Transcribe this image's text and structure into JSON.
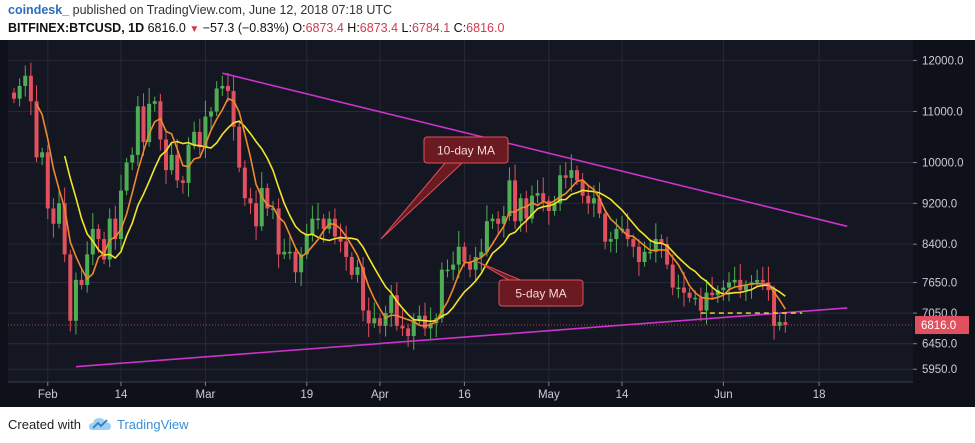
{
  "header": {
    "user": "coindesk_",
    "published_text": "published on TradingView.com, June 12, 2018 07:18 UTC",
    "symbol": "BITFINEX:BTCUSD, 1D",
    "last": "6816.0",
    "change": "−57.3 (−0.83%)",
    "o_label": "O:",
    "o_value": "6873.4",
    "h_label": "H:",
    "h_value": "6873.4",
    "l_label": "L:",
    "l_value": "6784.1",
    "c_label": "C:",
    "c_value": "6816.0"
  },
  "footer": {
    "created_with": "Created with",
    "brand": "TradingView"
  },
  "colors": {
    "background": "#141721",
    "up": "#4fae55",
    "down": "#e0505e",
    "ma10": "#f1e62a",
    "ma5": "#f0892e",
    "trendline": "#cc33cc",
    "price_tag": "#e0505e",
    "annotation": "#6b1a22"
  },
  "chart_data": {
    "type": "candlestick",
    "ylim": [
      5700,
      12400
    ],
    "y_ticks": [
      "12000.0",
      "11000.0",
      "10000.0",
      "9200.0",
      "8400.0",
      "7650.0",
      "7050.0",
      "6450.0",
      "5950.0"
    ],
    "y_tick_values": [
      12000,
      11000,
      10000,
      9200,
      8400,
      7650,
      7050,
      6450,
      5950
    ],
    "x_ticks": [
      "Feb",
      "14",
      "Mar",
      "19",
      "Apr",
      "16",
      "May",
      "14",
      "Jun",
      "18"
    ],
    "x_tick_dates": [
      "2018-02-01",
      "2018-02-14",
      "2018-03-01",
      "2018-03-19",
      "2018-04-01",
      "2018-04-16",
      "2018-05-01",
      "2018-05-14",
      "2018-06-01",
      "2018-06-18"
    ],
    "last_price_label": "6816.0",
    "last_price": 6816,
    "annotations": [
      "10-day MA",
      "5-day MA"
    ],
    "trendlines": [
      {
        "from": [
          "2018-03-04",
          11750
        ],
        "to": [
          "2018-06-23",
          8750
        ]
      },
      {
        "from": [
          "2018-02-06",
          6000
        ],
        "to": [
          "2018-06-23",
          7150
        ]
      }
    ],
    "support_level": 7050,
    "daily_close": [
      [
        "2018-01-26",
        11250
      ],
      [
        "2018-01-27",
        11500
      ],
      [
        "2018-01-28",
        11700
      ],
      [
        "2018-01-29",
        11200
      ],
      [
        "2018-01-30",
        10100
      ],
      [
        "2018-01-31",
        10200
      ],
      [
        "2018-02-01",
        9100
      ],
      [
        "2018-02-02",
        8800
      ],
      [
        "2018-02-03",
        9200
      ],
      [
        "2018-02-04",
        8200
      ],
      [
        "2018-02-05",
        6900
      ],
      [
        "2018-02-06",
        7700
      ],
      [
        "2018-02-07",
        7600
      ],
      [
        "2018-02-08",
        8200
      ],
      [
        "2018-02-09",
        8700
      ],
      [
        "2018-02-10",
        8500
      ],
      [
        "2018-02-11",
        8100
      ],
      [
        "2018-02-12",
        8900
      ],
      [
        "2018-02-13",
        8500
      ],
      [
        "2018-02-14",
        9450
      ],
      [
        "2018-02-15",
        10000
      ],
      [
        "2018-02-16",
        10150
      ],
      [
        "2018-02-17",
        11100
      ],
      [
        "2018-02-18",
        10400
      ],
      [
        "2018-02-19",
        11150
      ],
      [
        "2018-02-20",
        11200
      ],
      [
        "2018-02-21",
        10450
      ],
      [
        "2018-02-22",
        9850
      ],
      [
        "2018-02-23",
        10150
      ],
      [
        "2018-02-24",
        9650
      ],
      [
        "2018-02-25",
        9600
      ],
      [
        "2018-02-26",
        10350
      ],
      [
        "2018-02-27",
        10600
      ],
      [
        "2018-02-28",
        10300
      ],
      [
        "2018-03-01",
        10900
      ],
      [
        "2018-03-02",
        11000
      ],
      [
        "2018-03-03",
        11450
      ],
      [
        "2018-03-04",
        11500
      ],
      [
        "2018-03-05",
        11400
      ],
      [
        "2018-03-06",
        10700
      ],
      [
        "2018-03-07",
        9900
      ],
      [
        "2018-03-08",
        9300
      ],
      [
        "2018-03-09",
        9200
      ],
      [
        "2018-03-10",
        8750
      ],
      [
        "2018-03-11",
        9500
      ],
      [
        "2018-03-12",
        9100
      ],
      [
        "2018-03-13",
        9100
      ],
      [
        "2018-03-14",
        8200
      ],
      [
        "2018-03-15",
        8250
      ],
      [
        "2018-03-16",
        8250
      ],
      [
        "2018-03-17",
        7850
      ],
      [
        "2018-03-18",
        8200
      ],
      [
        "2018-03-19",
        8600
      ],
      [
        "2018-03-20",
        8900
      ],
      [
        "2018-03-21",
        8900
      ],
      [
        "2018-03-22",
        8700
      ],
      [
        "2018-03-23",
        8900
      ],
      [
        "2018-03-24",
        8550
      ],
      [
        "2018-03-25",
        8450
      ],
      [
        "2018-03-26",
        8150
      ],
      [
        "2018-03-27",
        7800
      ],
      [
        "2018-03-28",
        7950
      ],
      [
        "2018-03-29",
        7100
      ],
      [
        "2018-03-30",
        6850
      ],
      [
        "2018-03-31",
        6950
      ],
      [
        "2018-04-01",
        6800
      ],
      [
        "2018-04-02",
        7050
      ],
      [
        "2018-04-03",
        7400
      ],
      [
        "2018-04-04",
        6800
      ],
      [
        "2018-04-05",
        6750
      ],
      [
        "2018-04-06",
        6600
      ],
      [
        "2018-04-07",
        6900
      ],
      [
        "2018-04-08",
        7000
      ],
      [
        "2018-04-09",
        6750
      ],
      [
        "2018-04-10",
        6850
      ],
      [
        "2018-04-11",
        6950
      ],
      [
        "2018-04-12",
        7900
      ],
      [
        "2018-04-13",
        7900
      ],
      [
        "2018-04-14",
        8000
      ],
      [
        "2018-04-15",
        8350
      ],
      [
        "2018-04-16",
        8050
      ],
      [
        "2018-04-17",
        7900
      ],
      [
        "2018-04-18",
        8150
      ],
      [
        "2018-04-19",
        8250
      ],
      [
        "2018-04-20",
        8850
      ],
      [
        "2018-04-21",
        8900
      ],
      [
        "2018-04-22",
        8800
      ],
      [
        "2018-04-23",
        8950
      ],
      [
        "2018-04-24",
        9650
      ],
      [
        "2018-04-25",
        8850
      ],
      [
        "2018-04-26",
        9300
      ],
      [
        "2018-04-27",
        8900
      ],
      [
        "2018-04-28",
        9350
      ],
      [
        "2018-04-29",
        9400
      ],
      [
        "2018-04-30",
        9250
      ],
      [
        "2018-05-01",
        9050
      ],
      [
        "2018-05-02",
        9200
      ],
      [
        "2018-05-03",
        9750
      ],
      [
        "2018-05-04",
        9700
      ],
      [
        "2018-05-05",
        9850
      ],
      [
        "2018-05-06",
        9650
      ],
      [
        "2018-05-07",
        9350
      ],
      [
        "2018-05-08",
        9200
      ],
      [
        "2018-05-09",
        9300
      ],
      [
        "2018-05-10",
        9000
      ],
      [
        "2018-05-11",
        8450
      ],
      [
        "2018-05-12",
        8500
      ],
      [
        "2018-05-13",
        8700
      ],
      [
        "2018-05-14",
        8700
      ],
      [
        "2018-05-15",
        8500
      ],
      [
        "2018-05-16",
        8350
      ],
      [
        "2018-05-17",
        8050
      ],
      [
        "2018-05-18",
        8250
      ],
      [
        "2018-05-19",
        8250
      ],
      [
        "2018-05-20",
        8500
      ],
      [
        "2018-05-21",
        8400
      ],
      [
        "2018-05-22",
        8000
      ],
      [
        "2018-05-23",
        7550
      ],
      [
        "2018-05-24",
        7550
      ],
      [
        "2018-05-25",
        7450
      ],
      [
        "2018-05-26",
        7350
      ],
      [
        "2018-05-27",
        7350
      ],
      [
        "2018-05-28",
        7100
      ],
      [
        "2018-05-29",
        7450
      ],
      [
        "2018-05-30",
        7400
      ],
      [
        "2018-05-31",
        7500
      ],
      [
        "2018-06-01",
        7550
      ],
      [
        "2018-06-02",
        7650
      ],
      [
        "2018-06-03",
        7700
      ],
      [
        "2018-06-04",
        7500
      ],
      [
        "2018-06-05",
        7600
      ],
      [
        "2018-06-06",
        7650
      ],
      [
        "2018-06-07",
        7700
      ],
      [
        "2018-06-08",
        7650
      ],
      [
        "2018-06-09",
        7500
      ],
      [
        "2018-06-10",
        6800
      ],
      [
        "2018-06-11",
        6875
      ],
      [
        "2018-06-12",
        6816
      ]
    ]
  }
}
